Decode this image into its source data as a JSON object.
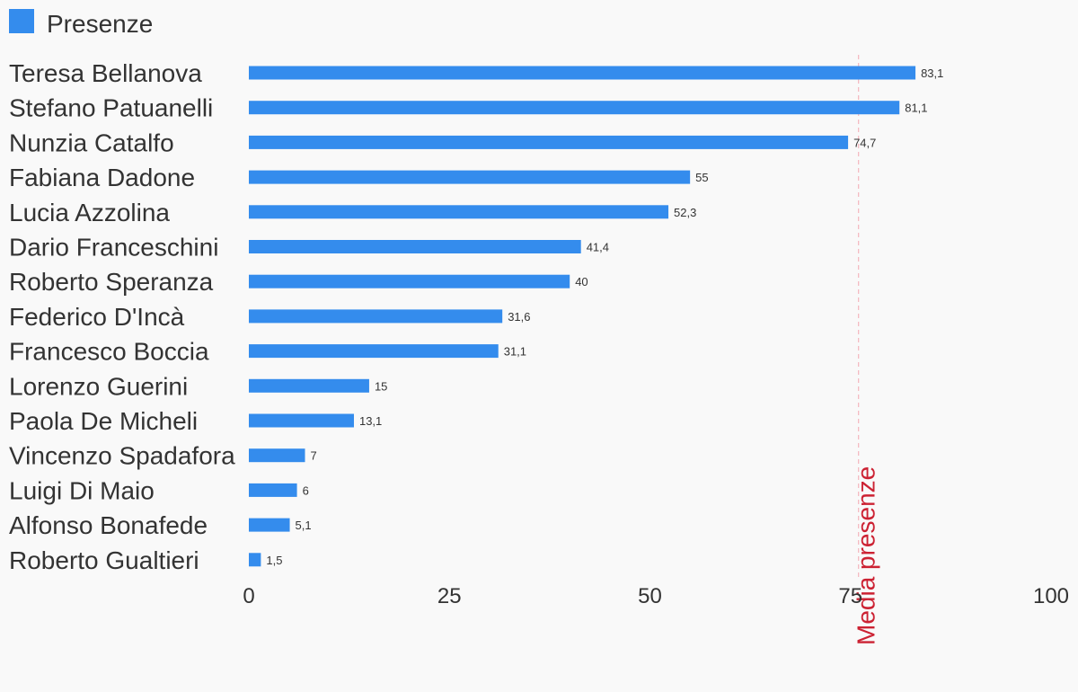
{
  "chart_data": {
    "type": "bar",
    "orientation": "horizontal",
    "series": [
      {
        "name": "Presenze",
        "color": "#348CED",
        "values": [
          83.1,
          81.1,
          74.7,
          55,
          52.3,
          41.4,
          40,
          31.6,
          31.1,
          15,
          13.1,
          7,
          6,
          5.1,
          1.5
        ],
        "value_labels": [
          "83,1",
          "81,1",
          "74,7",
          "55",
          "52,3",
          "41,4",
          "40",
          "31,6",
          "31,1",
          "15",
          "13,1",
          "7",
          "6",
          "5,1",
          "1,5"
        ]
      }
    ],
    "categories": [
      "Teresa Bellanova",
      "Stefano Patuanelli",
      "Nunzia Catalfo",
      "Fabiana Dadone",
      "Lucia Azzolina",
      "Dario Franceschini",
      "Roberto Speranza",
      "Federico D'Incà",
      "Francesco Boccia",
      "Lorenzo Guerini",
      "Paola De Micheli",
      "Vincenzo Spadafora",
      "Luigi Di Maio",
      "Alfonso Bonafede",
      "Roberto Gualtieri"
    ],
    "xlim": [
      0,
      100
    ],
    "xticks": [
      0,
      25,
      50,
      75,
      100
    ],
    "tick_labels": [
      "0",
      "25",
      "50",
      "75",
      "100"
    ],
    "reference_line": {
      "value": 76,
      "label": "Media presenze",
      "color": "#CC2233",
      "style": "dashed"
    },
    "legend": {
      "position": "top-left",
      "entries": [
        "Presenze"
      ]
    },
    "grid": false,
    "title": "",
    "xlabel": "",
    "ylabel": ""
  }
}
